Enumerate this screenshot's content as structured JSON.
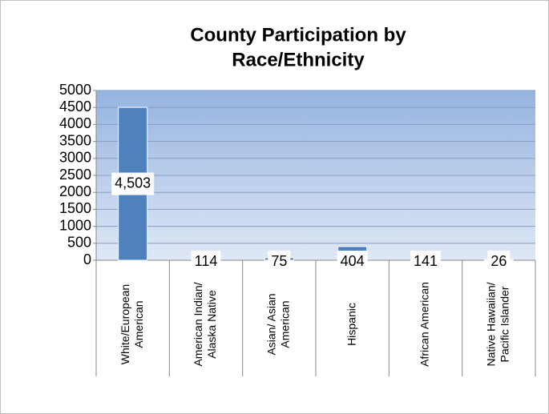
{
  "chart_data": {
    "type": "bar",
    "title": [
      "County Participation by",
      "Race/Ethnicity"
    ],
    "categories": [
      [
        "White/European",
        "American"
      ],
      [
        "American Indian/",
        "Alaska Native"
      ],
      [
        "Asian/ Asian",
        "American"
      ],
      [
        "Hispanic"
      ],
      [
        "African American"
      ],
      [
        "Native Hawaiian/",
        "Pacific Islander"
      ]
    ],
    "values": [
      4503,
      114,
      75,
      404,
      141,
      26
    ],
    "value_labels": [
      "4,503",
      "114",
      "75",
      "404",
      "141",
      "26"
    ],
    "color": "#4f81bd",
    "ylim": [
      0,
      5000
    ],
    "yticks": [
      0,
      500,
      1000,
      1500,
      2000,
      2500,
      3000,
      3500,
      4000,
      4500,
      5000
    ],
    "grid": true
  }
}
